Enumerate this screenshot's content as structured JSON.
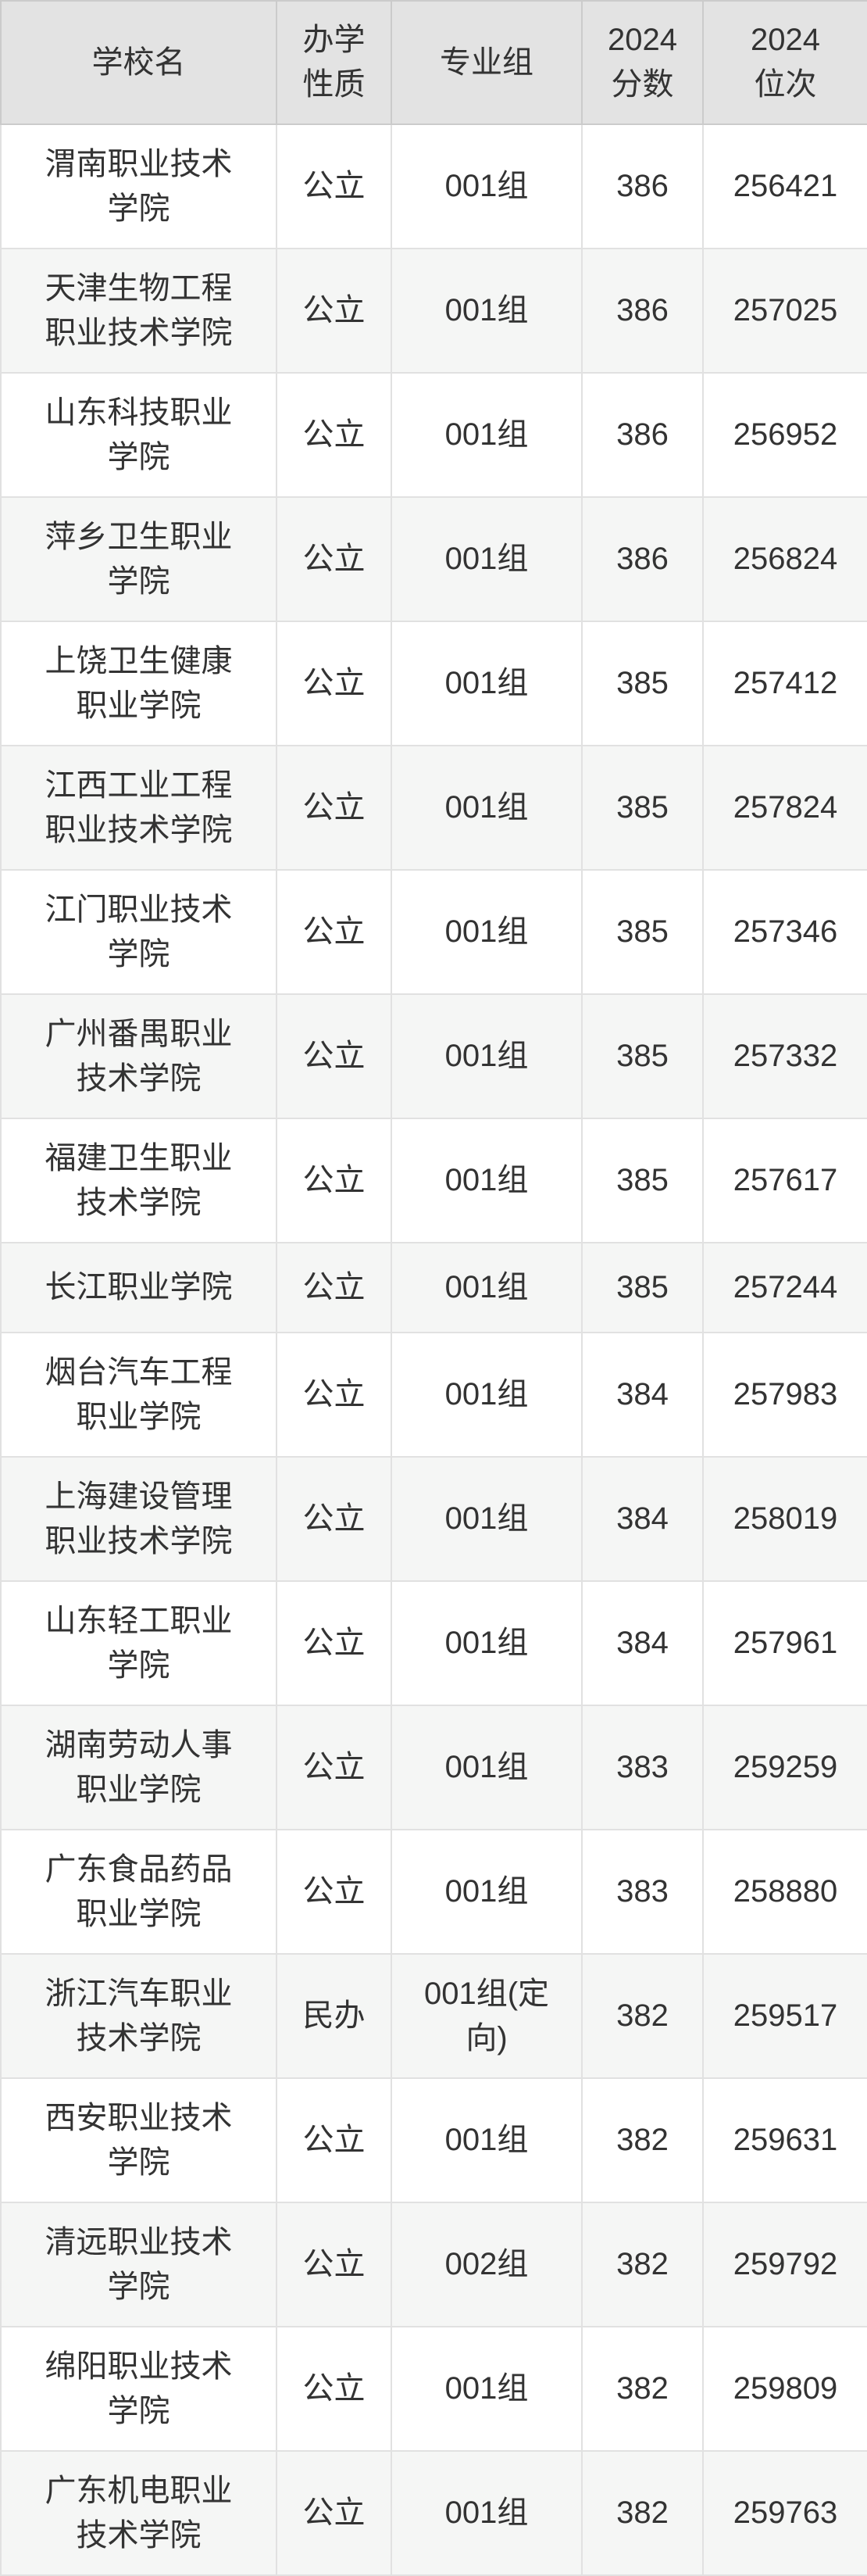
{
  "colors": {
    "header_bg": "#e3e3e3",
    "header_border": "#cbcbcb",
    "body_border": "#e1e1e1",
    "row_odd_bg": "#ffffff",
    "row_even_bg": "#f5f6f5",
    "text": "#333333"
  },
  "table": {
    "columns": [
      {
        "key": "school",
        "label": "学校名"
      },
      {
        "key": "type",
        "label": "办学性质"
      },
      {
        "key": "group",
        "label": "专业组"
      },
      {
        "key": "score",
        "label": "2024分数"
      },
      {
        "key": "rank",
        "label": "2024位次"
      }
    ],
    "rows": [
      {
        "school": "渭南职业技术学院",
        "type": "公立",
        "group": "001组",
        "score": "386",
        "rank": "256421"
      },
      {
        "school": "天津生物工程职业技术学院",
        "type": "公立",
        "group": "001组",
        "score": "386",
        "rank": "257025"
      },
      {
        "school": "山东科技职业学院",
        "type": "公立",
        "group": "001组",
        "score": "386",
        "rank": "256952"
      },
      {
        "school": "萍乡卫生职业学院",
        "type": "公立",
        "group": "001组",
        "score": "386",
        "rank": "256824"
      },
      {
        "school": "上饶卫生健康职业学院",
        "type": "公立",
        "group": "001组",
        "score": "385",
        "rank": "257412"
      },
      {
        "school": "江西工业工程职业技术学院",
        "type": "公立",
        "group": "001组",
        "score": "385",
        "rank": "257824"
      },
      {
        "school": "江门职业技术学院",
        "type": "公立",
        "group": "001组",
        "score": "385",
        "rank": "257346"
      },
      {
        "school": "广州番禺职业技术学院",
        "type": "公立",
        "group": "001组",
        "score": "385",
        "rank": "257332"
      },
      {
        "school": "福建卫生职业技术学院",
        "type": "公立",
        "group": "001组",
        "score": "385",
        "rank": "257617"
      },
      {
        "school": "长江职业学院",
        "type": "公立",
        "group": "001组",
        "score": "385",
        "rank": "257244"
      },
      {
        "school": "烟台汽车工程职业学院",
        "type": "公立",
        "group": "001组",
        "score": "384",
        "rank": "257983"
      },
      {
        "school": "上海建设管理职业技术学院",
        "type": "公立",
        "group": "001组",
        "score": "384",
        "rank": "258019"
      },
      {
        "school": "山东轻工职业学院",
        "type": "公立",
        "group": "001组",
        "score": "384",
        "rank": "257961"
      },
      {
        "school": "湖南劳动人事职业学院",
        "type": "公立",
        "group": "001组",
        "score": "383",
        "rank": "259259"
      },
      {
        "school": "广东食品药品职业学院",
        "type": "公立",
        "group": "001组",
        "score": "383",
        "rank": "258880"
      },
      {
        "school": "浙江汽车职业技术学院",
        "type": "民办",
        "group": "001组(定向)",
        "score": "382",
        "rank": "259517"
      },
      {
        "school": "西安职业技术学院",
        "type": "公立",
        "group": "001组",
        "score": "382",
        "rank": "259631"
      },
      {
        "school": "清远职业技术学院",
        "type": "公立",
        "group": "002组",
        "score": "382",
        "rank": "259792"
      },
      {
        "school": "绵阳职业技术学院",
        "type": "公立",
        "group": "001组",
        "score": "382",
        "rank": "259809"
      },
      {
        "school": "广东机电职业技术学院",
        "type": "公立",
        "group": "001组",
        "score": "382",
        "rank": "259763"
      }
    ]
  }
}
